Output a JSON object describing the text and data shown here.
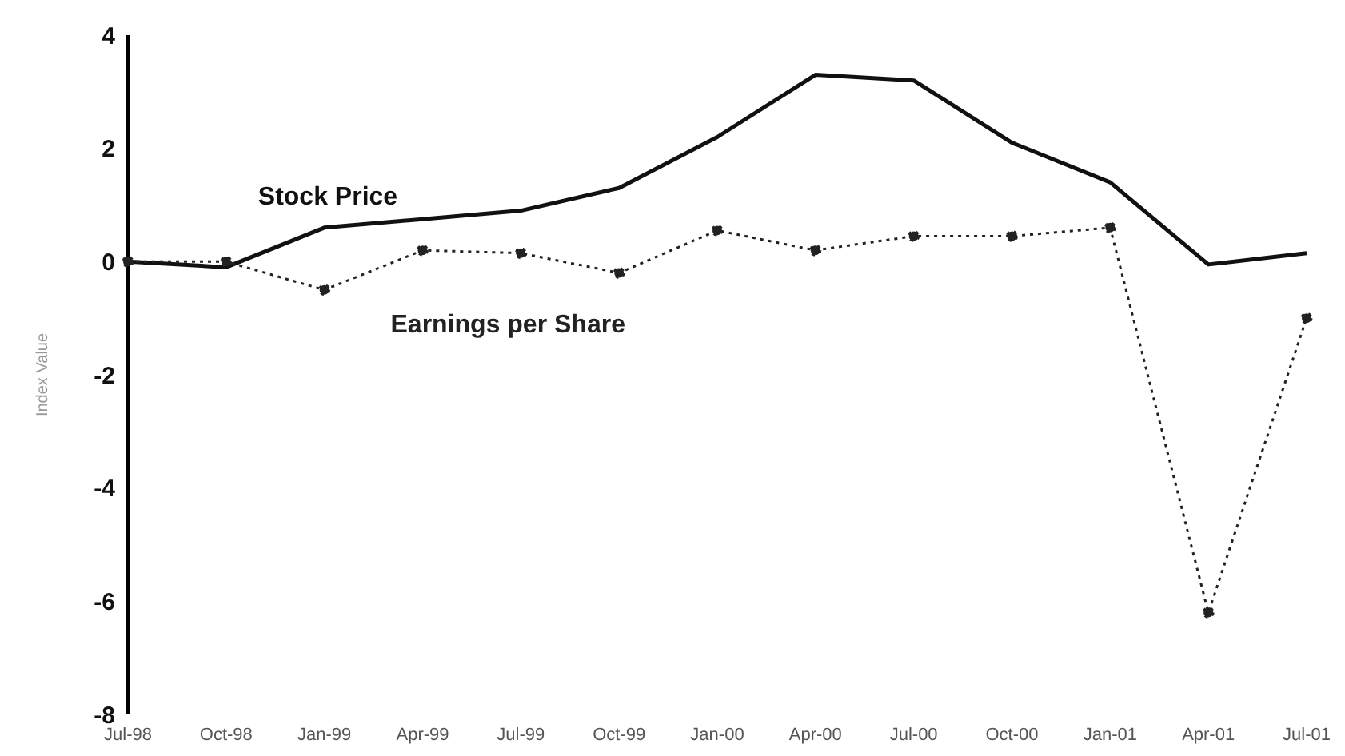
{
  "chart_data": {
    "type": "line",
    "ylabel": "Index Value",
    "categories": [
      "Jul-98",
      "Oct-98",
      "Jan-99",
      "Apr-99",
      "Jul-99",
      "Oct-99",
      "Jan-00",
      "Apr-00",
      "Jul-00",
      "Oct-00",
      "Jan-01",
      "Apr-01",
      "Jul-01"
    ],
    "series": [
      {
        "name": "Stock Price",
        "color": "#111111",
        "line_style": "solid",
        "marker": "none",
        "values": [
          0,
          -0.1,
          0.6,
          0.75,
          0.9,
          1.3,
          2.2,
          3.3,
          3.2,
          2.1,
          1.4,
          -0.05,
          0.15
        ]
      },
      {
        "name": "Earnings per Share",
        "color": "#222222",
        "line_style": "dotted",
        "marker": "circle",
        "values": [
          0,
          0,
          -0.5,
          0.2,
          0.15,
          -0.2,
          0.55,
          0.2,
          0.45,
          0.45,
          0.6,
          -6.2,
          -1.0
        ]
      }
    ],
    "ylim": [
      -8,
      4
    ],
    "yticks": [
      -8,
      -6,
      -4,
      -2,
      0,
      2,
      4
    ],
    "grid": false,
    "legend": false
  }
}
